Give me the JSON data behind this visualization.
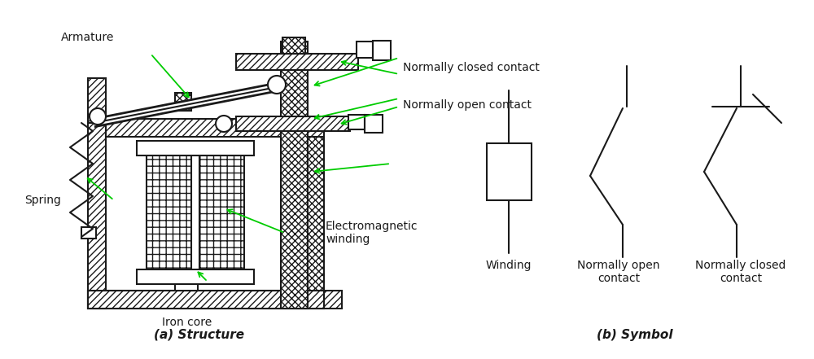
{
  "bg_color": "#ffffff",
  "line_color": "#1a1a1a",
  "arrow_color": "#00cc00",
  "title_a": "(a) Structure",
  "title_b": "(b) Symbol",
  "label_armature": "Armature",
  "label_spring": "Spring",
  "label_iron_core": "Iron core",
  "label_em_winding": "Electromagnetic\nwinding",
  "label_nc": "Normally closed contact",
  "label_no": "Normally open contact",
  "label_winding": "Winding",
  "label_sym_no": "Normally open\ncontact",
  "label_sym_nc": "Normally closed\ncontact"
}
